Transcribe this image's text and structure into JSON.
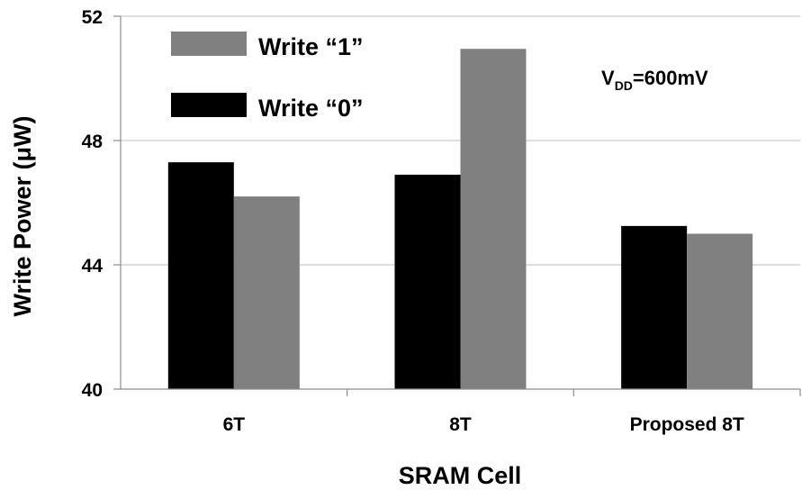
{
  "chart_data": {
    "type": "bar",
    "categories": [
      "6T",
      "8T",
      "Proposed 8T"
    ],
    "series": [
      {
        "name": "Write “0”",
        "values": [
          47.3,
          46.9,
          45.25
        ],
        "color": "#000000"
      },
      {
        "name": "Write “1”",
        "values": [
          46.2,
          50.95,
          45.0
        ],
        "color": "#808080"
      }
    ],
    "xlabel": "SRAM Cell",
    "ylabel": "Write Power (μW)",
    "ylim": [
      40,
      52
    ],
    "yticks": [
      40,
      44,
      48,
      52
    ],
    "grid": true,
    "legend": {
      "position": "top-left",
      "entries": [
        {
          "label": "Write “1”",
          "color": "#808080"
        },
        {
          "label": "Write “0”",
          "color": "#000000"
        }
      ]
    },
    "annotation": {
      "main": "V",
      "subscript": "DD",
      "rest": "=600mV",
      "position": "top-right"
    }
  }
}
